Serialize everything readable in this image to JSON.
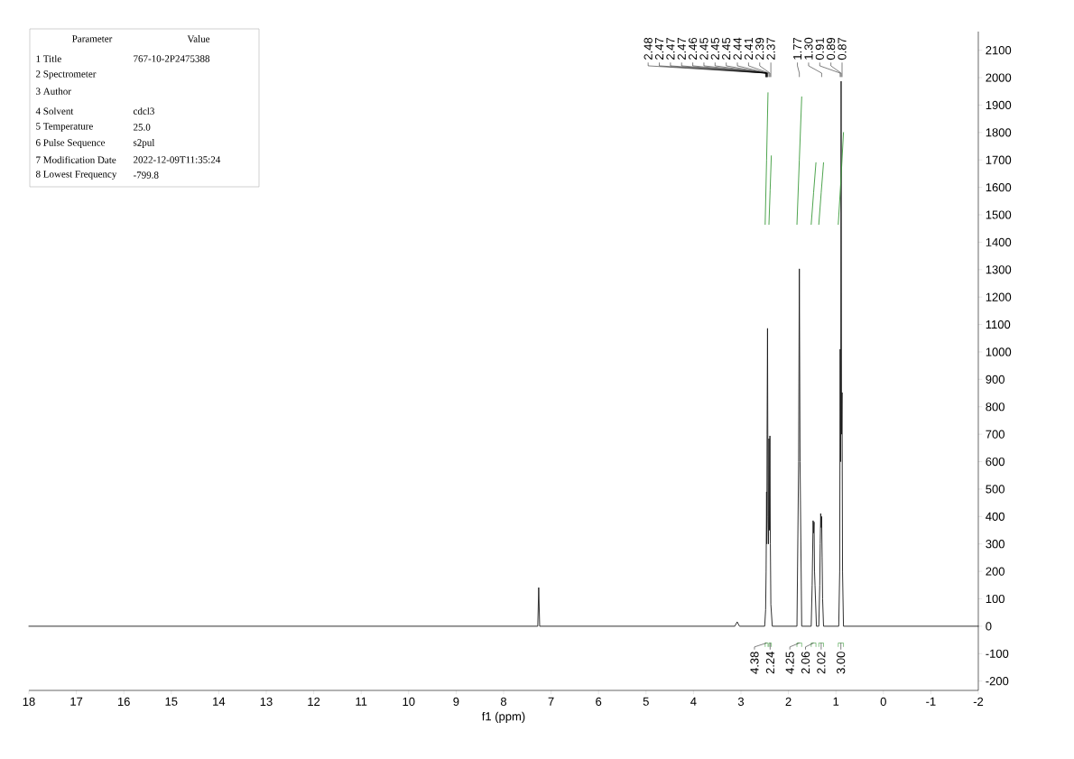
{
  "chart_data": {
    "type": "line",
    "xlabel": "f1 (ppm)",
    "xlim": [
      18,
      -2
    ],
    "ylim": [
      -234,
      2168
    ],
    "xticks": [
      18,
      17,
      16,
      15,
      14,
      13,
      12,
      11,
      10,
      9,
      8,
      7,
      6,
      5,
      4,
      3,
      2,
      1,
      0,
      -1,
      -2
    ],
    "yticks": [
      -200,
      -100,
      0,
      100,
      200,
      300,
      400,
      500,
      600,
      700,
      800,
      900,
      1000,
      1100,
      1200,
      1300,
      1400,
      1500,
      1600,
      1700,
      1800,
      1900,
      2000,
      2100
    ],
    "marker": "none",
    "line_style": "solid",
    "series": [
      {
        "color": "#1a1a1a",
        "x": [
          18,
          7.28,
          7.26,
          7.24,
          3.13,
          3.08,
          3.03,
          2.5,
          2.48,
          2.47,
          2.46,
          2.455,
          2.45,
          2.44,
          2.43,
          2.42,
          2.41,
          2.4,
          2.39,
          2.38,
          2.37,
          2.34,
          1.82,
          1.785,
          1.77,
          1.755,
          1.72,
          1.52,
          1.5,
          1.48,
          1.47,
          1.46,
          1.45,
          1.44,
          1.41,
          1.36,
          1.34,
          1.33,
          1.32,
          1.31,
          1.3,
          1.29,
          1.28,
          1.26,
          0.94,
          0.92,
          0.91,
          0.9,
          0.89,
          0.88,
          0.87,
          0.86,
          0.84,
          -2
        ],
        "values": [
          0,
          0,
          141,
          0,
          0,
          16,
          0,
          0,
          60,
          200,
          490,
          300,
          700,
          1086,
          400,
          300,
          684,
          350,
          694,
          300,
          80,
          0,
          0,
          600,
          1303,
          600,
          0,
          0,
          150,
          385,
          340,
          380,
          200,
          150,
          0,
          0,
          150,
          300,
          411,
          360,
          400,
          250,
          100,
          0,
          0,
          200,
          1010,
          600,
          1987,
          700,
          852,
          200,
          0,
          0
        ]
      },
      {
        "color": "#3a9a3a",
        "x": [
          2.49,
          2.46,
          2.43
        ],
        "values": [
          1465,
          1700,
          1945
        ]
      },
      {
        "color": "#3a9a3a",
        "x": [
          2.41,
          2.385,
          2.36
        ],
        "values": [
          1465,
          1590,
          1715
        ]
      },
      {
        "color": "#3a9a3a",
        "x": [
          1.82,
          1.77,
          1.72
        ],
        "values": [
          1465,
          1700,
          1930
        ]
      },
      {
        "color": "#3a9a3a",
        "x": [
          1.52,
          1.47,
          1.42
        ],
        "values": [
          1465,
          1580,
          1690
        ]
      },
      {
        "color": "#3a9a3a",
        "x": [
          1.36,
          1.31,
          1.26
        ],
        "values": [
          1465,
          1580,
          1690
        ]
      },
      {
        "color": "#3a9a3a",
        "x": [
          0.95,
          0.89,
          0.84
        ],
        "values": [
          1465,
          1640,
          1800
        ]
      }
    ],
    "annotations": [
      "Parameter",
      "Value",
      "1 Title",
      "767-10-2P2475388",
      "2 Spectrometer",
      "3 Author",
      "4 Solvent",
      "cdcl3",
      "5 Temperature",
      "25.0",
      "6 Pulse Sequence",
      "s2pul",
      "7 Modification Date",
      "2022-12-09T11:35:24",
      "8 Lowest Frequency",
      "-799.8",
      {
        "text": "2.48",
        "x": 2.48
      },
      {
        "text": "2.47",
        "x": 2.47
      },
      {
        "text": "2.47",
        "x": 2.47
      },
      {
        "text": "2.47",
        "x": 2.47
      },
      {
        "text": "2.46",
        "x": 2.46
      },
      {
        "text": "2.45",
        "x": 2.45
      },
      {
        "text": "2.45",
        "x": 2.45
      },
      {
        "text": "2.45",
        "x": 2.45
      },
      {
        "text": "2.44",
        "x": 2.44
      },
      {
        "text": "2.41",
        "x": 2.41
      },
      {
        "text": "2.39",
        "x": 2.39
      },
      {
        "text": "2.37",
        "x": 2.37
      },
      {
        "text": "1.77",
        "x": 1.77
      },
      {
        "text": "1.30",
        "x": 1.3
      },
      {
        "text": "0.91",
        "x": 0.91
      },
      {
        "text": "0.89",
        "x": 0.89
      },
      {
        "text": "0.87",
        "x": 0.87
      },
      {
        "text": "4.38",
        "x": 2.46
      },
      {
        "text": "2.24",
        "x": 2.385
      },
      {
        "text": "4.25",
        "x": 1.77
      },
      {
        "text": "2.06",
        "x": 1.47
      },
      {
        "text": "2.02",
        "x": 1.31
      },
      {
        "text": "3.00",
        "x": 0.895
      }
    ]
  }
}
